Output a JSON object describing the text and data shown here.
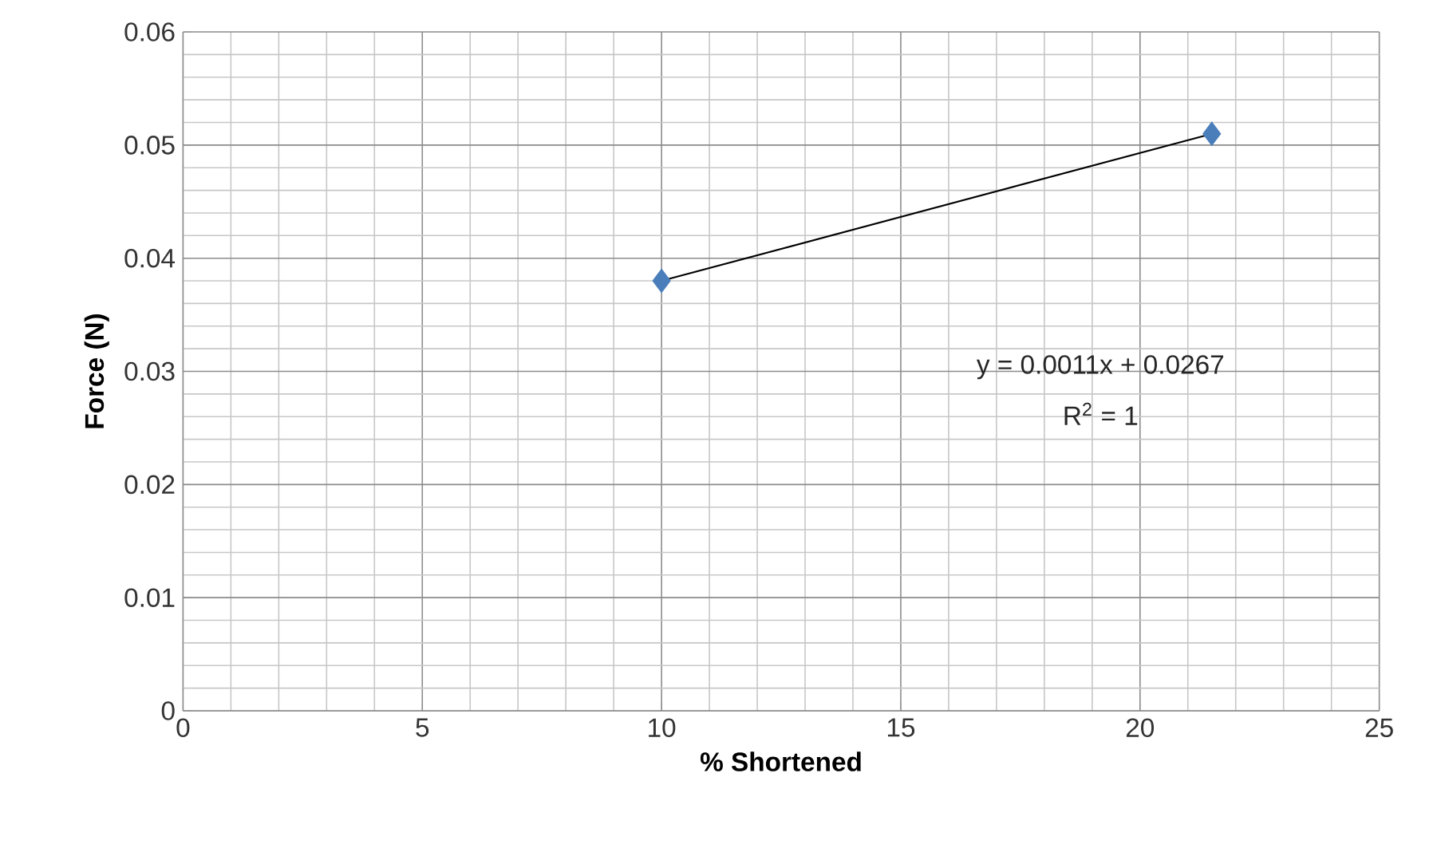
{
  "chart_data": {
    "type": "scatter",
    "xlabel": "% Shortened",
    "ylabel": "Force (N)",
    "xlim": [
      0,
      25
    ],
    "xticks": [
      0,
      5,
      10,
      15,
      20,
      25
    ],
    "ylim": [
      0,
      0.06
    ],
    "yticks": [
      0,
      0.01,
      0.02,
      0.03,
      0.04,
      0.05,
      0.06
    ],
    "grid": true,
    "x": [
      10,
      21.5
    ],
    "series": [
      {
        "color": "#4a7ebb",
        "marker": "diamond",
        "values": [
          0.038,
          0.051
        ]
      },
      {
        "type": "line",
        "color": "#000000",
        "line_style": "solid",
        "x": [
          10,
          21.5
        ],
        "values": [
          0.038,
          0.051
        ]
      }
    ],
    "annotations": [
      "y = 0.0011x + 0.0267",
      "R$^{2}$ = 1"
    ]
  }
}
